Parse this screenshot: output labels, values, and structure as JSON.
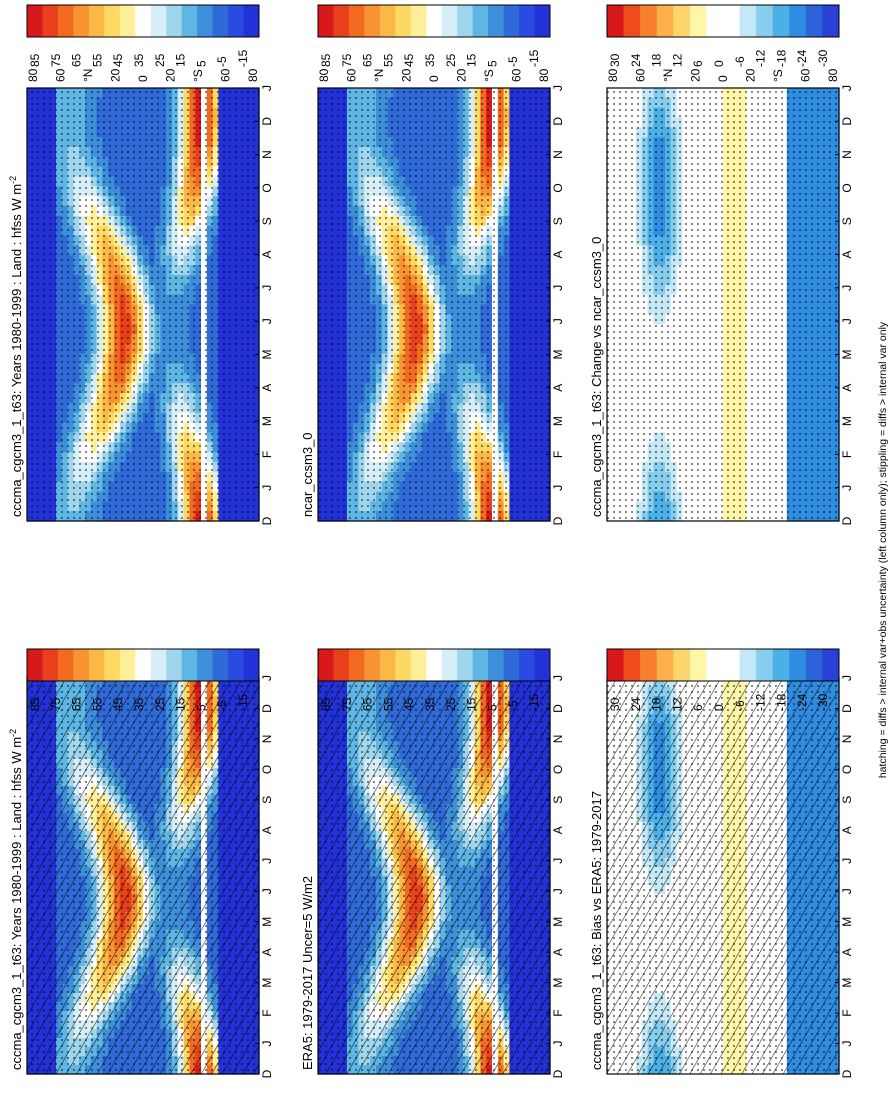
{
  "figure": {
    "footer": "hatching = diffs > internal var+obs uncertainty (left column only); stippling = diffs > internal var only",
    "months": [
      "D",
      "J",
      "F",
      "M",
      "A",
      "M",
      "J",
      "J",
      "A",
      "S",
      "O",
      "N",
      "D",
      "J"
    ],
    "lat_labels": [
      "80",
      "60",
      "°N",
      "20",
      "0",
      "20",
      "°S",
      "60",
      "80"
    ]
  },
  "chart_data": [
    {
      "id": "p1",
      "type": "heatmap",
      "title": "cccma_cgcm3_1_t63: Years 1980-1999 : Land : hfss W m",
      "title_sup": "-2",
      "x": "month (D J F M A M J J A S O N D J)",
      "y": "latitude 90N to 90S",
      "colorbar": [
        "85",
        "75",
        "65",
        "55",
        "45",
        "35",
        "25",
        "15",
        "5",
        "-5",
        "-15"
      ],
      "hatching": true,
      "stippling": true
    },
    {
      "id": "p2",
      "type": "heatmap",
      "title": "cccma_cgcm3_1_t63: Years 1980-1999 : Land : hfss W m",
      "title_sup": "-2",
      "colorbar": [
        "85",
        "75",
        "65",
        "55",
        "45",
        "35",
        "25",
        "15",
        "5",
        "-5",
        "-15"
      ],
      "hatching": false,
      "stippling": true
    },
    {
      "id": "p3",
      "type": "heatmap",
      "title": "ERA5: 1979-2017 Uncer=5 W/m2",
      "title_sup": "",
      "colorbar": [
        "85",
        "75",
        "65",
        "55",
        "45",
        "35",
        "25",
        "15",
        "5",
        "-5",
        "-15"
      ],
      "hatching": true,
      "stippling": true
    },
    {
      "id": "p4",
      "type": "heatmap",
      "title": "ncar_ccsm3_0",
      "title_sup": "",
      "colorbar": [
        "85",
        "75",
        "65",
        "55",
        "45",
        "35",
        "25",
        "15",
        "5",
        "-5",
        "-15"
      ],
      "hatching": false,
      "stippling": true
    },
    {
      "id": "p5",
      "type": "heatmap",
      "title": "cccma_cgcm3_1_t63: Bias vs ERA5: 1979-2017",
      "title_sup": "",
      "colorbar": [
        "30",
        "24",
        "18",
        "12",
        "6",
        "0",
        "-6",
        "-12",
        "-18",
        "-24",
        "-30"
      ],
      "hatching": true,
      "stippling": true
    },
    {
      "id": "p6",
      "type": "heatmap",
      "title": "cccma_cgcm3_1_t63: Change vs ncar_ccsm3_0",
      "title_sup": "",
      "colorbar": [
        "30",
        "24",
        "18",
        "12",
        "6",
        "0",
        "-6",
        "-12",
        "-18",
        "-24",
        "-30"
      ],
      "hatching": false,
      "stippling": true
    }
  ],
  "colors": {
    "abs_scale": [
      "#d7191c",
      "#e8401c",
      "#f26a20",
      "#f79431",
      "#fbb845",
      "#fdd863",
      "#fef09a",
      "#ffffff",
      "#d6eef7",
      "#9fd6ee",
      "#5eb6e4",
      "#3d8fdb",
      "#2f6ad8",
      "#2a4be0",
      "#2331d8"
    ],
    "diff_scale": [
      "#d7191c",
      "#ef4c1e",
      "#f78030",
      "#fbb04a",
      "#fdd56b",
      "#fff6a8",
      "#ffffff",
      "#ffffff",
      "#c5e8f6",
      "#86cdee",
      "#4cb0e6",
      "#2f8ce0",
      "#2c63d8",
      "#2a3fd4"
    ]
  }
}
